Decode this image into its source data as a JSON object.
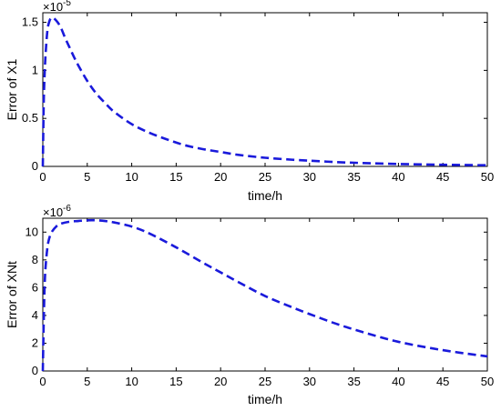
{
  "chart_data": [
    {
      "type": "line",
      "xlabel": "time/h",
      "ylabel": "Error of X1",
      "xlim": [
        0,
        50
      ],
      "ylim": [
        0,
        1.6
      ],
      "x_ticks": [
        "0",
        "5",
        "10",
        "15",
        "20",
        "25",
        "30",
        "35",
        "40",
        "45",
        "50"
      ],
      "y_ticks": [
        "0",
        "0.5",
        "1",
        "1.5"
      ],
      "y_tick_values": [
        0,
        0.5,
        1,
        1.5
      ],
      "exponent_base": "×10",
      "exponent": "-5",
      "grid": false,
      "line_color": "#1a1adb",
      "line_style": "dashed",
      "series": [
        {
          "x": [
            0,
            0.1,
            0.2,
            0.3,
            0.5,
            0.7,
            1,
            1.5,
            2,
            2.5,
            3,
            3.5,
            4,
            5,
            6,
            7,
            8,
            10,
            12,
            14,
            16,
            18,
            20,
            22,
            25,
            28,
            30,
            33,
            36,
            40,
            45,
            50
          ],
          "values": [
            0,
            0.65,
            0.95,
            1.15,
            1.4,
            1.5,
            1.55,
            1.52,
            1.45,
            1.34,
            1.24,
            1.14,
            1.05,
            0.89,
            0.76,
            0.66,
            0.57,
            0.44,
            0.35,
            0.28,
            0.22,
            0.18,
            0.15,
            0.12,
            0.09,
            0.07,
            0.06,
            0.045,
            0.035,
            0.025,
            0.017,
            0.012
          ]
        }
      ]
    },
    {
      "type": "line",
      "xlabel": "time/h",
      "ylabel": "Error of XNt",
      "xlim": [
        0,
        50
      ],
      "ylim": [
        0,
        11
      ],
      "x_ticks": [
        "0",
        "5",
        "10",
        "15",
        "20",
        "25",
        "30",
        "35",
        "40",
        "45",
        "50"
      ],
      "y_ticks": [
        "0",
        "2",
        "4",
        "6",
        "8",
        "10"
      ],
      "y_tick_values": [
        0,
        2,
        4,
        6,
        8,
        10
      ],
      "exponent_base": "×10",
      "exponent": "-6",
      "grid": false,
      "line_color": "#1a1adb",
      "line_style": "dashed",
      "series": [
        {
          "x": [
            0,
            0.1,
            0.2,
            0.3,
            0.5,
            0.7,
            1,
            1.5,
            2,
            3,
            4,
            5,
            6,
            7,
            8,
            10,
            12,
            15,
            18,
            20,
            22,
            25,
            28,
            30,
            33,
            36,
            40,
            45,
            50
          ],
          "values": [
            0,
            3.5,
            6,
            7.4,
            8.8,
            9.5,
            10.0,
            10.4,
            10.6,
            10.75,
            10.8,
            10.85,
            10.85,
            10.8,
            10.7,
            10.4,
            9.9,
            8.9,
            7.8,
            7.1,
            6.4,
            5.4,
            4.6,
            4.1,
            3.4,
            2.8,
            2.1,
            1.5,
            1.05
          ]
        }
      ]
    }
  ]
}
